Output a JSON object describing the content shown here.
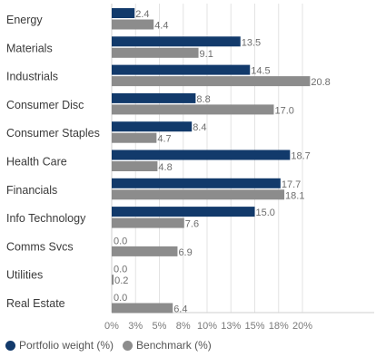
{
  "chart_data": {
    "type": "bar",
    "orientation": "horizontal",
    "categories": [
      "Energy",
      "Materials",
      "Industrials",
      "Consumer Disc",
      "Consumer Staples",
      "Health Care",
      "Financials",
      "Info Technology",
      "Comms Svcs",
      "Utilities",
      "Real Estate"
    ],
    "series": [
      {
        "name": "Portfolio weight (%)",
        "color": "#123a6b",
        "values": [
          2.4,
          13.5,
          14.5,
          8.8,
          8.4,
          18.7,
          17.7,
          15.0,
          0.0,
          0.0,
          0.0
        ],
        "labels": [
          "2.4",
          "13.5",
          "14.5",
          "8.8",
          "8.4",
          "18.7",
          "17.7",
          "15.0",
          "0.0",
          "0.0",
          "0.0"
        ]
      },
      {
        "name": "Benchmark (%)",
        "color": "#8c8c8c",
        "values": [
          4.4,
          9.1,
          20.8,
          17.0,
          4.7,
          4.8,
          18.1,
          7.6,
          6.9,
          0.2,
          6.4
        ],
        "labels": [
          "4.4",
          "9.1",
          "20.8",
          "17.0",
          "4.7",
          "4.8",
          "18.1",
          "7.6",
          "6.9",
          "0.2",
          "6.4"
        ]
      }
    ],
    "xlim": [
      0,
      22.5
    ],
    "ticks": [
      0,
      2.5,
      5,
      7.5,
      10,
      12.5,
      15,
      17.5,
      20
    ],
    "tick_labels": [
      "0%",
      "3%",
      "5%",
      "8%",
      "10%",
      "13%",
      "15%",
      "18%",
      "20%"
    ],
    "grid": true,
    "legend_position": "bottom-left"
  }
}
